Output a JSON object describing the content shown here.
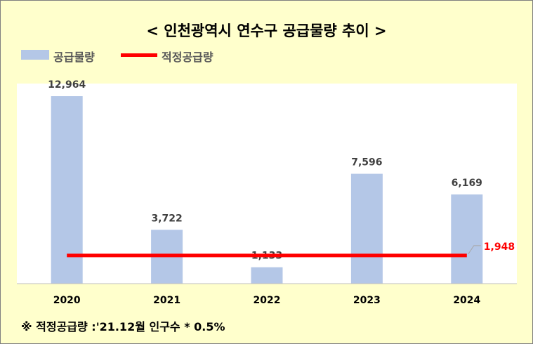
{
  "chart_data": {
    "type": "bar",
    "title": "< 인천광역시 연수구 공급물량 추이 >",
    "categories": [
      "2020",
      "2021",
      "2022",
      "2023",
      "2024"
    ],
    "series": [
      {
        "name": "공급물량",
        "type": "bar",
        "values": [
          12964,
          3722,
          1133,
          7596,
          6169
        ],
        "labels": [
          "12,964",
          "3,722",
          "1,133",
          "7,596",
          "6,169"
        ],
        "color": "#b4c7e7"
      },
      {
        "name": "적정공급량",
        "type": "line",
        "values": [
          1948,
          1948,
          1948,
          1948,
          1948
        ],
        "end_label": "1,948",
        "color": "#ff0000"
      }
    ],
    "ylim": [
      0,
      14000
    ],
    "grid": false,
    "legend_position": "top-left"
  },
  "footnote": "※ 적정공급량 :'21.12월 인구수 * 0.5%"
}
